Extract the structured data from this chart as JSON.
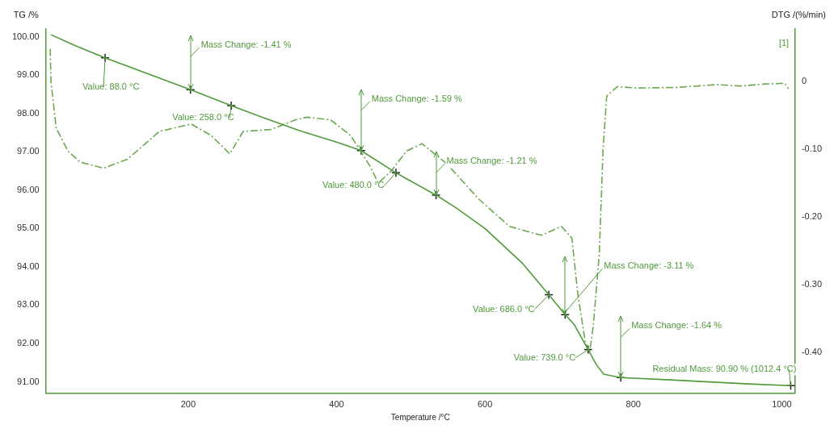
{
  "chart_data": {
    "type": "line",
    "xlabel": "Temperature /°C",
    "ylabel": "TG /%",
    "y2label": "DTG /(%/min)",
    "xlim": [
      8,
      1018
    ],
    "xticks": [
      200,
      400,
      600,
      800,
      1000
    ],
    "ylim": [
      90.7,
      100.2
    ],
    "yticks": [
      {
        "value": 91,
        "label": "91.00"
      },
      {
        "value": 92,
        "label": "92.00"
      },
      {
        "value": 93,
        "label": "93.00"
      },
      {
        "value": 94,
        "label": "94.00"
      },
      {
        "value": 95,
        "label": "95.00"
      },
      {
        "value": 96,
        "label": "96.00"
      },
      {
        "value": 97,
        "label": "97.00"
      },
      {
        "value": 98,
        "label": "98.00"
      },
      {
        "value": 99,
        "label": "99.00"
      },
      {
        "value": 100,
        "label": "100.00"
      }
    ],
    "y2lim": [
      -0.46,
      0.077
    ],
    "y2ticks": [
      {
        "value": -0.4,
        "label": "-0.40"
      },
      {
        "value": -0.3,
        "label": "-0.30"
      },
      {
        "value": -0.2,
        "label": "-0.20"
      },
      {
        "value": -0.1,
        "label": "-0.10"
      },
      0
    ],
    "grid": false,
    "legend": false,
    "series": [
      {
        "color": "#4f9a3a",
        "line_style": "solid",
        "marker": "none",
        "x": [
          15,
          50,
          88,
          150,
          203,
          258,
          300,
          350,
          400,
          433,
          480,
          534,
          560,
          600,
          650,
          686,
          708,
          720,
          739,
          750,
          760,
          783,
          850,
          950,
          1012
        ],
        "values": [
          100.05,
          99.75,
          99.45,
          99.0,
          98.62,
          98.2,
          97.9,
          97.55,
          97.25,
          97.03,
          96.45,
          95.87,
          95.55,
          95.0,
          94.1,
          93.27,
          92.75,
          92.5,
          91.84,
          91.45,
          91.2,
          91.11,
          91.05,
          90.95,
          90.9
        ]
      },
      {
        "axis": "y2",
        "color": "#6aa84f",
        "line_style": "dashed",
        "marker": "none",
        "x": [
          14,
          15,
          22,
          38,
          54,
          86,
          118,
          161,
          204,
          231,
          256,
          274,
          312,
          344,
          360,
          392,
          419,
          446,
          456,
          473,
          494,
          515,
          548,
          591,
          633,
          676,
          703,
          717,
          725,
          735,
          741,
          746,
          754,
          759,
          764,
          778,
          805,
          859,
          912,
          945,
          977,
          1004,
          1009
        ],
        "values": [
          0.048,
          0,
          -0.069,
          -0.103,
          -0.119,
          -0.128,
          -0.115,
          -0.074,
          -0.063,
          -0.08,
          -0.107,
          -0.074,
          -0.071,
          -0.057,
          -0.053,
          -0.057,
          -0.08,
          -0.127,
          -0.15,
          -0.133,
          -0.103,
          -0.092,
          -0.121,
          -0.173,
          -0.214,
          -0.227,
          -0.214,
          -0.231,
          -0.313,
          -0.383,
          -0.4,
          -0.359,
          -0.255,
          -0.103,
          -0.022,
          -0.008,
          -0.01,
          -0.009,
          -0.005,
          -0.007,
          -0.004,
          -0.003,
          -0.011
        ]
      },
      {
        "type": "scatter",
        "color": "#222222",
        "marker": "cross",
        "x": [
          88,
          203,
          258,
          433,
          480,
          534,
          686,
          708,
          739,
          783,
          1012
        ],
        "values": [
          99.45,
          98.62,
          98.2,
          97.03,
          96.45,
          95.87,
          93.27,
          92.75,
          91.84,
          91.11,
          90.9
        ]
      }
    ],
    "annotations": [
      {
        "text": "Mass Change: -1.41 %",
        "x": 203,
        "y": 98.62
      },
      {
        "text": "Value: 88.0 °C",
        "x": 88,
        "y": 99.45
      },
      {
        "text": "Value: 258.0 °C",
        "x": 258,
        "y": 98.2
      },
      {
        "text": "Mass Change: -1.59 %",
        "x": 433,
        "y": 97.03
      },
      {
        "text": "Value: 480.0 °C",
        "x": 480,
        "y": 96.45
      },
      {
        "text": "Mass Change: -1.21 %",
        "x": 534,
        "y": 95.87
      },
      {
        "text": "Mass Change: -3.11 %",
        "x": 708,
        "y": 92.75
      },
      {
        "text": "Value: 686.0 °C",
        "x": 686,
        "y": 93.27
      },
      {
        "text": "Value: 739.0 °C",
        "x": 739,
        "y": 91.84
      },
      {
        "text": "Mass Change: -1.64 %",
        "x": 783,
        "y": 91.11
      },
      {
        "text": "Residual Mass: 90.90 % (1012.4 °C)",
        "x": 1012,
        "y": 90.9
      },
      "[1]"
    ]
  }
}
